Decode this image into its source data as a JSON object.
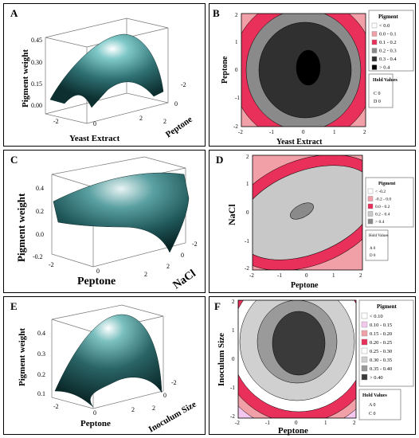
{
  "chart_data": [
    {
      "panel": "A",
      "type": "surface",
      "xlabel": "Yeast Extract",
      "ylabel": "Peptone",
      "zlabel": "Pigment weight",
      "z_ticks": [
        "0.45",
        "0.30",
        "0.15",
        "0.00"
      ],
      "x_ticks": [
        "-2",
        "0",
        "2"
      ],
      "y_ticks": [
        "-2",
        "0",
        "2"
      ],
      "surface_peak": 0.45,
      "surface_color": "#2e6f72"
    },
    {
      "panel": "B",
      "type": "contour",
      "xlabel": "Yeast Extract",
      "ylabel": "Peptone",
      "x_ticks": [
        "-2",
        "-1",
        "0",
        "1",
        "2"
      ],
      "y_ticks": [
        "2",
        "1",
        "0",
        "-1",
        "-2"
      ],
      "legend_title": "Pigment",
      "legend": [
        {
          "label": "< 0.0",
          "color": "#ffffff"
        },
        {
          "label": "0.0 -  0.1",
          "color": "#f2a0a8"
        },
        {
          "label": "0.1 -  0.2",
          "color": "#e8305a"
        },
        {
          "label": "0.2 -  0.3",
          "color": "#8a8a8a"
        },
        {
          "label": "0.3 -  0.4",
          "color": "#303030"
        },
        {
          "label": ">  0.4",
          "color": "#000000"
        }
      ],
      "hold_title": "Hold\nValues",
      "hold": [
        "C  0",
        "D  0"
      ]
    },
    {
      "panel": "C",
      "type": "surface",
      "xlabel": "Peptone",
      "ylabel": "NaCl",
      "zlabel": "Pigment weight",
      "z_ticks": [
        "0.4",
        "0.2",
        "0.0",
        "-0.2"
      ],
      "x_ticks": [
        "-2",
        "0",
        "2"
      ],
      "y_ticks": [
        "-2",
        "0",
        "2"
      ],
      "surface_peak": 0.4,
      "surface_color": "#1f5658"
    },
    {
      "panel": "D",
      "type": "contour",
      "xlabel": "Peptone",
      "ylabel": "NaCl",
      "x_ticks": [
        "-2",
        "-1",
        "0",
        "1",
        "2"
      ],
      "y_ticks": [
        "2",
        "1",
        "0",
        "-1",
        "-2"
      ],
      "legend_title": "Pigment",
      "legend": [
        {
          "label": "< -0.2",
          "color": "#ffffff"
        },
        {
          "label": "-0.2 -  0.0",
          "color": "#f2a0a8"
        },
        {
          "label": "0.0 -  0.2",
          "color": "#e8305a"
        },
        {
          "label": "0.2 -  0.4",
          "color": "#c8c8c8"
        },
        {
          "label": ">  0.4",
          "color": "#8a8a8a"
        }
      ],
      "hold_title": "Hold\nValues",
      "hold": [
        "A  0",
        "D  0"
      ]
    },
    {
      "panel": "E",
      "type": "surface",
      "xlabel": "Peptone",
      "ylabel": "Inoculum Size",
      "zlabel": "Pigment weight",
      "z_ticks": [
        "0.4",
        "0.3",
        "0.2",
        "0.1"
      ],
      "x_ticks": [
        "-2",
        "0",
        "2"
      ],
      "y_ticks": [
        "-2",
        "0",
        "2"
      ],
      "surface_peak": 0.4,
      "surface_color": "#2a6466"
    },
    {
      "panel": "F",
      "type": "contour",
      "xlabel": "Peptone",
      "ylabel": "Inoculum Size",
      "x_ticks": [
        "-2",
        "-1",
        "0",
        "1",
        "2"
      ],
      "y_ticks": [
        "2",
        "1",
        "0",
        "-1",
        "-2"
      ],
      "legend_title": "Pigment",
      "legend": [
        {
          "label": "< 0.10",
          "color": "#ffffff"
        },
        {
          "label": "0.10 -  0.15",
          "color": "#f4c8ee"
        },
        {
          "label": "0.15 -  0.20",
          "color": "#f2a0a8"
        },
        {
          "label": "0.20 -  0.25",
          "color": "#e8305a"
        },
        {
          "label": "0.25 -  0.30",
          "color": "#ffffff"
        },
        {
          "label": "0.30 -  0.35",
          "color": "#d0d0d0"
        },
        {
          "label": "0.35 -  0.40",
          "color": "#9a9a9a"
        },
        {
          "label": ">  0.40",
          "color": "#3a3a3a"
        }
      ],
      "hold_title": "Hold Values",
      "hold": [
        "A  0",
        "C  0"
      ]
    }
  ]
}
